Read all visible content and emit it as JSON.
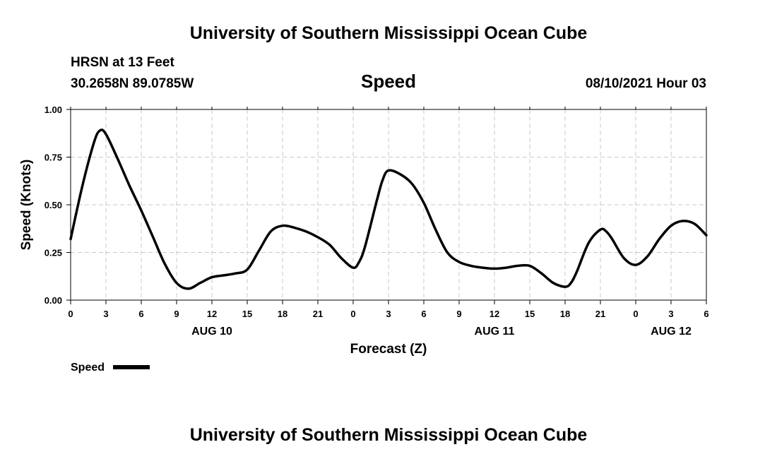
{
  "page": {
    "title_top": "University of Southern Mississippi Ocean Cube",
    "title_bottom": "University of Southern Mississippi Ocean Cube",
    "station": "HRSN at 13 Feet",
    "coords": "30.2658N  89.0785W",
    "datetime": "08/10/2021 Hour 03"
  },
  "chart_data": {
    "type": "line",
    "title": "Speed",
    "xlabel": "Forecast (Z)",
    "ylabel": "Speed (Knots)",
    "xlim": [
      0,
      54
    ],
    "ylim": [
      0,
      1
    ],
    "grid": true,
    "legend_position": "bottom-left",
    "x_ticks": [
      0,
      3,
      6,
      9,
      12,
      15,
      18,
      21,
      24,
      27,
      30,
      33,
      36,
      39,
      42,
      45,
      48,
      51,
      54
    ],
    "x_tick_labels": [
      "0",
      "3",
      "6",
      "9",
      "12",
      "15",
      "18",
      "21",
      "0",
      "3",
      "6",
      "9",
      "12",
      "15",
      "18",
      "21",
      "0",
      "3",
      "6"
    ],
    "y_ticks": [
      0,
      0.25,
      0.5,
      0.75,
      1.0
    ],
    "y_tick_labels": [
      "0.00",
      "0.25",
      "0.50",
      "0.75",
      "1.00"
    ],
    "day_labels": [
      {
        "x": 12,
        "label": "AUG 10"
      },
      {
        "x": 36,
        "label": "AUG 11"
      },
      {
        "x": 51,
        "label": "AUG 12"
      }
    ],
    "series": [
      {
        "name": "Speed",
        "color": "#000000",
        "points": [
          [
            0,
            0.32
          ],
          [
            1,
            0.6
          ],
          [
            2,
            0.83
          ],
          [
            2.5,
            0.89
          ],
          [
            3,
            0.87
          ],
          [
            4,
            0.74
          ],
          [
            5,
            0.6
          ],
          [
            6,
            0.47
          ],
          [
            7,
            0.33
          ],
          [
            8,
            0.19
          ],
          [
            9,
            0.09
          ],
          [
            10,
            0.06
          ],
          [
            11,
            0.09
          ],
          [
            12,
            0.12
          ],
          [
            13,
            0.13
          ],
          [
            14,
            0.14
          ],
          [
            15,
            0.16
          ],
          [
            16,
            0.26
          ],
          [
            17,
            0.36
          ],
          [
            18,
            0.39
          ],
          [
            19,
            0.38
          ],
          [
            20,
            0.36
          ],
          [
            21,
            0.33
          ],
          [
            22,
            0.29
          ],
          [
            23,
            0.22
          ],
          [
            24,
            0.17
          ],
          [
            24.5,
            0.2
          ],
          [
            25,
            0.28
          ],
          [
            26,
            0.52
          ],
          [
            26.5,
            0.63
          ],
          [
            27,
            0.68
          ],
          [
            28,
            0.66
          ],
          [
            29,
            0.61
          ],
          [
            30,
            0.51
          ],
          [
            31,
            0.37
          ],
          [
            32,
            0.25
          ],
          [
            33,
            0.2
          ],
          [
            34,
            0.18
          ],
          [
            35,
            0.17
          ],
          [
            36,
            0.165
          ],
          [
            37,
            0.17
          ],
          [
            38,
            0.18
          ],
          [
            39,
            0.18
          ],
          [
            40,
            0.14
          ],
          [
            41,
            0.09
          ],
          [
            42,
            0.07
          ],
          [
            42.5,
            0.09
          ],
          [
            43,
            0.15
          ],
          [
            44,
            0.3
          ],
          [
            45,
            0.37
          ],
          [
            45.5,
            0.36
          ],
          [
            46,
            0.32
          ],
          [
            47,
            0.22
          ],
          [
            48,
            0.185
          ],
          [
            49,
            0.23
          ],
          [
            50,
            0.32
          ],
          [
            51,
            0.39
          ],
          [
            52,
            0.415
          ],
          [
            53,
            0.4
          ],
          [
            54,
            0.34
          ]
        ]
      }
    ]
  }
}
